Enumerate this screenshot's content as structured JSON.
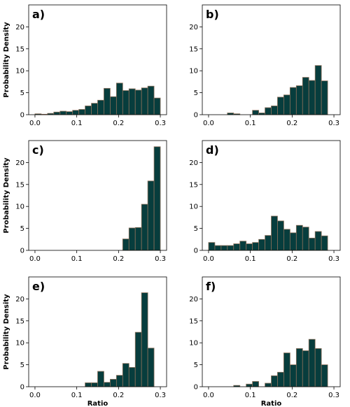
{
  "figure": {
    "bar_color": "#073d3d",
    "edge_color": "#8b6f5a",
    "xlim": [
      -0.015,
      0.315
    ],
    "ylim": [
      0,
      25
    ],
    "xticks": [
      0.0,
      0.1,
      0.2,
      0.3
    ],
    "xtick_labels": [
      "0.0",
      "0.1",
      "0.2",
      "0.3"
    ],
    "yticks": [
      0,
      5,
      10,
      15,
      20
    ],
    "ytick_labels": [
      "0",
      "5",
      "10",
      "15",
      "20"
    ],
    "y_axis_label": "Probability Density",
    "x_axis_label": "Ratio"
  },
  "chart_data": [
    {
      "type": "bar",
      "panel": "a)",
      "bin_width": 0.015,
      "bin_starts": [
        0.0,
        0.015,
        0.03,
        0.045,
        0.06,
        0.075,
        0.09,
        0.105,
        0.12,
        0.135,
        0.15,
        0.165,
        0.18,
        0.195,
        0.21,
        0.225,
        0.24,
        0.255,
        0.27,
        0.285
      ],
      "values": [
        0.2,
        0.1,
        0.3,
        0.6,
        0.8,
        0.7,
        1.0,
        1.2,
        2.0,
        2.6,
        3.3,
        6.0,
        4.1,
        7.2,
        5.5,
        5.9,
        5.6,
        6.1,
        6.5,
        3.8
      ],
      "xlim": [
        -0.015,
        0.315
      ],
      "ylim": [
        0,
        25
      ]
    },
    {
      "type": "bar",
      "panel": "b)",
      "bin_width": 0.015,
      "bin_starts": [
        0.0,
        0.015,
        0.03,
        0.045,
        0.06,
        0.075,
        0.09,
        0.105,
        0.12,
        0.135,
        0.15,
        0.165,
        0.18,
        0.195,
        0.21,
        0.225,
        0.24,
        0.255,
        0.27,
        0.285
      ],
      "values": [
        0,
        0,
        0,
        0.4,
        0.2,
        0,
        0,
        1.0,
        0.4,
        1.6,
        2.0,
        4.0,
        4.5,
        6.2,
        6.6,
        8.5,
        7.8,
        11.2,
        7.7,
        0
      ],
      "xlim": [
        -0.015,
        0.315
      ],
      "ylim": [
        0,
        25
      ]
    },
    {
      "type": "bar",
      "panel": "c)",
      "bin_width": 0.015,
      "bin_starts": [
        0.0,
        0.015,
        0.03,
        0.045,
        0.06,
        0.075,
        0.09,
        0.105,
        0.12,
        0.135,
        0.15,
        0.165,
        0.18,
        0.195,
        0.21,
        0.225,
        0.24,
        0.255,
        0.27,
        0.285
      ],
      "values": [
        0,
        0,
        0,
        0,
        0,
        0,
        0,
        0,
        0,
        0,
        0,
        0,
        0,
        0,
        2.6,
        5.1,
        5.2,
        10.5,
        15.8,
        23.6
      ],
      "xlim": [
        -0.015,
        0.315
      ],
      "ylim": [
        0,
        25
      ]
    },
    {
      "type": "bar",
      "panel": "d)",
      "bin_width": 0.015,
      "bin_starts": [
        0.0,
        0.015,
        0.03,
        0.045,
        0.06,
        0.075,
        0.09,
        0.105,
        0.12,
        0.135,
        0.15,
        0.165,
        0.18,
        0.195,
        0.21,
        0.225,
        0.24,
        0.255,
        0.27,
        0.285
      ],
      "values": [
        1.8,
        1.1,
        1.1,
        1.1,
        1.5,
        2.1,
        1.5,
        1.8,
        2.5,
        3.4,
        7.8,
        6.7,
        4.8,
        4.0,
        5.7,
        5.3,
        2.8,
        4.3,
        3.3,
        0
      ],
      "xlim": [
        -0.015,
        0.315
      ],
      "ylim": [
        0,
        25
      ]
    },
    {
      "type": "bar",
      "panel": "e)",
      "bin_width": 0.015,
      "bin_starts": [
        0.0,
        0.015,
        0.03,
        0.045,
        0.06,
        0.075,
        0.09,
        0.105,
        0.12,
        0.135,
        0.15,
        0.165,
        0.18,
        0.195,
        0.21,
        0.225,
        0.24,
        0.255,
        0.27,
        0.285
      ],
      "values": [
        0,
        0,
        0,
        0,
        0,
        0,
        0,
        0,
        0.9,
        0.9,
        3.5,
        1.0,
        1.7,
        2.6,
        5.3,
        4.4,
        12.4,
        21.4,
        8.8,
        0
      ],
      "xlim": [
        -0.015,
        0.315
      ],
      "ylim": [
        0,
        25
      ]
    },
    {
      "type": "bar",
      "panel": "f)",
      "bin_width": 0.015,
      "bin_starts": [
        0.0,
        0.015,
        0.03,
        0.045,
        0.06,
        0.075,
        0.09,
        0.105,
        0.12,
        0.135,
        0.15,
        0.165,
        0.18,
        0.195,
        0.21,
        0.225,
        0.24,
        0.255,
        0.27,
        0.285
      ],
      "values": [
        0,
        0,
        0,
        0,
        0.3,
        0,
        0.6,
        1.2,
        0,
        0.8,
        2.5,
        3.3,
        7.7,
        5.0,
        8.7,
        8.2,
        10.8,
        8.7,
        5.0,
        0
      ],
      "xlim": [
        -0.015,
        0.315
      ],
      "ylim": [
        0,
        25
      ]
    }
  ]
}
